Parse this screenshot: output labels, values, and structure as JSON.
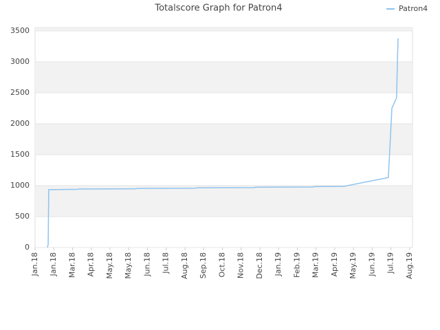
{
  "chart_data": {
    "type": "line",
    "title": "Totalscore Graph for Patron4",
    "x": [
      0.66,
      0.7,
      0.73,
      2.28,
      2.35,
      5.39,
      5.47,
      8.59,
      8.66,
      11.71,
      11.78,
      14.86,
      14.94,
      16.48,
      18.86,
      19.05,
      19.3,
      19.34,
      19.38
    ],
    "series": [
      {
        "name": "Patron4",
        "color": "#8ec3ef",
        "values": [
          0,
          50,
          935,
          940,
          945,
          948,
          955,
          958,
          965,
          968,
          975,
          978,
          985,
          988,
          1130,
          2250,
          2420,
          2950,
          3380
        ]
      }
    ],
    "xlim": [
      0,
      20.15
    ],
    "xticks": [
      {
        "value": 0,
        "label": "Jan.18"
      },
      {
        "value": 1,
        "label": "Jan.18"
      },
      {
        "value": 2,
        "label": "Mar.18"
      },
      {
        "value": 3,
        "label": "Apr.18"
      },
      {
        "value": 4,
        "label": "May.18"
      },
      {
        "value": 5,
        "label": "May.18"
      },
      {
        "value": 6,
        "label": "Jun.18"
      },
      {
        "value": 7,
        "label": "Jul.18"
      },
      {
        "value": 8,
        "label": "Aug.18"
      },
      {
        "value": 9,
        "label": "Sep.18"
      },
      {
        "value": 10,
        "label": "Oct.18"
      },
      {
        "value": 11,
        "label": "Nov.18"
      },
      {
        "value": 12,
        "label": "Dec.18"
      },
      {
        "value": 13,
        "label": "Jan.19"
      },
      {
        "value": 14,
        "label": "Feb.19"
      },
      {
        "value": 15,
        "label": "Mar.19"
      },
      {
        "value": 16,
        "label": "Apr.19"
      },
      {
        "value": 17,
        "label": "May.19"
      },
      {
        "value": 18,
        "label": "Jun.19"
      },
      {
        "value": 19,
        "label": "Jul.19"
      },
      {
        "value": 20,
        "label": "Aug.19"
      }
    ],
    "ylim": [
      0,
      3555
    ],
    "yticks": [
      0,
      500,
      1000,
      1500,
      2000,
      2500,
      3000,
      3500
    ],
    "grid": true,
    "banded": true,
    "legend": "top-right"
  }
}
